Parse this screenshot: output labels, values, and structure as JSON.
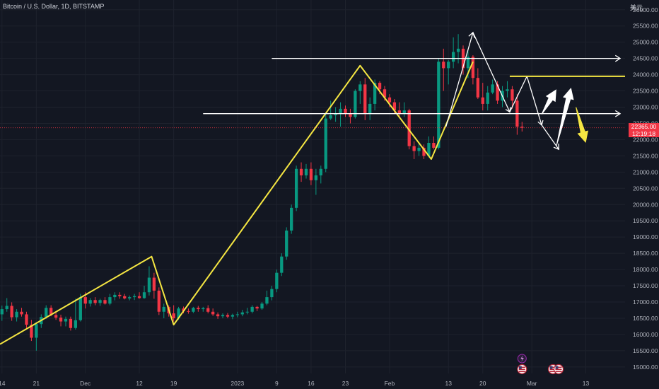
{
  "header": {
    "title": "Bitcoin / U.S. Dollar, 1D, BITSTAMP",
    "currency": "美元"
  },
  "price_tag": {
    "price": "22365.00",
    "countdown": "12:19:18"
  },
  "colors": {
    "background": "#131722",
    "grid": "#1e222d",
    "text": "#b2b5be",
    "up": "#089981",
    "down": "#f23645",
    "trendline": "#f5e642",
    "annotation": "#ffffff"
  },
  "chart_data": {
    "type": "candlestick",
    "symbol": "BTCUSD",
    "timeframe": "1D",
    "ylim": [
      14800,
      26300
    ],
    "y_ticks": [
      15000,
      15500,
      16000,
      16500,
      17000,
      17500,
      18000,
      18500,
      19000,
      19500,
      20000,
      20500,
      21000,
      21500,
      22000,
      22500,
      23000,
      23500,
      24000,
      24500,
      25000,
      25500,
      26000
    ],
    "x_tick_labels": [
      "14",
      "21",
      "Dec",
      "12",
      "19",
      "2023",
      "9",
      "16",
      "23",
      "Feb",
      "13",
      "20",
      "Mar",
      "13"
    ],
    "x_tick_days": [
      0,
      7,
      17,
      28,
      35,
      48,
      56,
      63,
      70,
      79,
      91,
      98,
      108,
      119
    ],
    "x_range_days": [
      -0.4,
      127
    ],
    "current_price": 22365,
    "candles": [
      {
        "o": 16620,
        "h": 16890,
        "l": 16420,
        "c": 16780
      },
      {
        "o": 16780,
        "h": 17120,
        "l": 16700,
        "c": 16880
      },
      {
        "o": 16880,
        "h": 16990,
        "l": 16420,
        "c": 16530
      },
      {
        "o": 16530,
        "h": 16780,
        "l": 16400,
        "c": 16700
      },
      {
        "o": 16700,
        "h": 16820,
        "l": 16550,
        "c": 16620
      },
      {
        "o": 16620,
        "h": 16700,
        "l": 16200,
        "c": 16300
      },
      {
        "o": 16300,
        "h": 16450,
        "l": 15800,
        "c": 15900
      },
      {
        "o": 15900,
        "h": 16380,
        "l": 15500,
        "c": 16320
      },
      {
        "o": 16320,
        "h": 16620,
        "l": 16200,
        "c": 16540
      },
      {
        "o": 16540,
        "h": 16900,
        "l": 16480,
        "c": 16820
      },
      {
        "o": 16820,
        "h": 16900,
        "l": 16560,
        "c": 16600
      },
      {
        "o": 16600,
        "h": 16700,
        "l": 16450,
        "c": 16520
      },
      {
        "o": 16520,
        "h": 16610,
        "l": 16250,
        "c": 16400
      },
      {
        "o": 16400,
        "h": 16550,
        "l": 16250,
        "c": 16480
      },
      {
        "o": 16480,
        "h": 16550,
        "l": 16120,
        "c": 16200
      },
      {
        "o": 16200,
        "h": 17100,
        "l": 16150,
        "c": 16440
      },
      {
        "o": 16440,
        "h": 17250,
        "l": 16400,
        "c": 17150
      },
      {
        "o": 17150,
        "h": 17300,
        "l": 16800,
        "c": 16950
      },
      {
        "o": 16950,
        "h": 17120,
        "l": 16860,
        "c": 17060
      },
      {
        "o": 17060,
        "h": 17150,
        "l": 16900,
        "c": 16970
      },
      {
        "o": 16970,
        "h": 17100,
        "l": 16880,
        "c": 17060
      },
      {
        "o": 17060,
        "h": 17150,
        "l": 16920,
        "c": 16950
      },
      {
        "o": 16950,
        "h": 17250,
        "l": 16900,
        "c": 17150
      },
      {
        "o": 17150,
        "h": 17300,
        "l": 17050,
        "c": 17220
      },
      {
        "o": 17220,
        "h": 17300,
        "l": 17100,
        "c": 17180
      },
      {
        "o": 17180,
        "h": 17250,
        "l": 17080,
        "c": 17110
      },
      {
        "o": 17110,
        "h": 17200,
        "l": 17050,
        "c": 17150
      },
      {
        "o": 17150,
        "h": 17250,
        "l": 17060,
        "c": 17180
      },
      {
        "o": 17180,
        "h": 17300,
        "l": 17100,
        "c": 17120
      },
      {
        "o": 17120,
        "h": 17500,
        "l": 17100,
        "c": 17300
      },
      {
        "o": 17300,
        "h": 18100,
        "l": 17200,
        "c": 17750
      },
      {
        "o": 17750,
        "h": 17900,
        "l": 17100,
        "c": 17350
      },
      {
        "o": 17350,
        "h": 17450,
        "l": 16600,
        "c": 16700
      },
      {
        "o": 16700,
        "h": 16950,
        "l": 16500,
        "c": 16850
      },
      {
        "o": 16850,
        "h": 16900,
        "l": 16550,
        "c": 16650
      },
      {
        "o": 16650,
        "h": 16900,
        "l": 16400,
        "c": 16500
      },
      {
        "o": 16500,
        "h": 16850,
        "l": 16450,
        "c": 16800
      },
      {
        "o": 16800,
        "h": 16860,
        "l": 16650,
        "c": 16720
      },
      {
        "o": 16720,
        "h": 16800,
        "l": 16640,
        "c": 16700
      },
      {
        "o": 16700,
        "h": 16850,
        "l": 16660,
        "c": 16820
      },
      {
        "o": 16820,
        "h": 16880,
        "l": 16700,
        "c": 16780
      },
      {
        "o": 16780,
        "h": 16850,
        "l": 16700,
        "c": 16810
      },
      {
        "o": 16810,
        "h": 16900,
        "l": 16650,
        "c": 16700
      },
      {
        "o": 16700,
        "h": 16800,
        "l": 16570,
        "c": 16620
      },
      {
        "o": 16620,
        "h": 16680,
        "l": 16480,
        "c": 16560
      },
      {
        "o": 16560,
        "h": 16650,
        "l": 16500,
        "c": 16600
      },
      {
        "o": 16600,
        "h": 16660,
        "l": 16500,
        "c": 16550
      },
      {
        "o": 16550,
        "h": 16640,
        "l": 16470,
        "c": 16600
      },
      {
        "o": 16600,
        "h": 16700,
        "l": 16530,
        "c": 16620
      },
      {
        "o": 16620,
        "h": 16760,
        "l": 16560,
        "c": 16680
      },
      {
        "o": 16680,
        "h": 16820,
        "l": 16620,
        "c": 16700
      },
      {
        "o": 16700,
        "h": 16900,
        "l": 16650,
        "c": 16850
      },
      {
        "o": 16850,
        "h": 16880,
        "l": 16720,
        "c": 16800
      },
      {
        "o": 16800,
        "h": 17000,
        "l": 16760,
        "c": 16950
      },
      {
        "o": 16950,
        "h": 17350,
        "l": 16900,
        "c": 17150
      },
      {
        "o": 17150,
        "h": 17500,
        "l": 17050,
        "c": 17400
      },
      {
        "o": 17400,
        "h": 18000,
        "l": 17300,
        "c": 17900
      },
      {
        "o": 17900,
        "h": 18500,
        "l": 17800,
        "c": 18400
      },
      {
        "o": 18400,
        "h": 19300,
        "l": 18300,
        "c": 19200
      },
      {
        "o": 19200,
        "h": 20000,
        "l": 19100,
        "c": 19900
      },
      {
        "o": 19900,
        "h": 21200,
        "l": 19800,
        "c": 21100
      },
      {
        "o": 21100,
        "h": 21300,
        "l": 20700,
        "c": 20900
      },
      {
        "o": 20900,
        "h": 21250,
        "l": 20800,
        "c": 21100
      },
      {
        "o": 21100,
        "h": 21300,
        "l": 20600,
        "c": 20750
      },
      {
        "o": 20750,
        "h": 21100,
        "l": 20300,
        "c": 20900
      },
      {
        "o": 20900,
        "h": 21200,
        "l": 20650,
        "c": 21100
      },
      {
        "o": 21100,
        "h": 22800,
        "l": 21000,
        "c": 22650
      },
      {
        "o": 22650,
        "h": 23200,
        "l": 22600,
        "c": 22750
      },
      {
        "o": 22750,
        "h": 23000,
        "l": 22550,
        "c": 22800
      },
      {
        "o": 22800,
        "h": 23150,
        "l": 22400,
        "c": 22950
      },
      {
        "o": 22950,
        "h": 23050,
        "l": 22700,
        "c": 22800
      },
      {
        "o": 22800,
        "h": 22950,
        "l": 22500,
        "c": 22700
      },
      {
        "o": 22700,
        "h": 23550,
        "l": 22650,
        "c": 23500
      },
      {
        "o": 23500,
        "h": 23800,
        "l": 23100,
        "c": 23700
      },
      {
        "o": 23700,
        "h": 23900,
        "l": 22600,
        "c": 22800
      },
      {
        "o": 22800,
        "h": 23300,
        "l": 22600,
        "c": 23100
      },
      {
        "o": 23100,
        "h": 23850,
        "l": 22900,
        "c": 23750
      },
      {
        "o": 23750,
        "h": 23800,
        "l": 23400,
        "c": 23550
      },
      {
        "o": 23550,
        "h": 23650,
        "l": 23200,
        "c": 23300
      },
      {
        "o": 23300,
        "h": 23400,
        "l": 23000,
        "c": 23150
      },
      {
        "o": 23150,
        "h": 23250,
        "l": 22800,
        "c": 22900
      },
      {
        "o": 22900,
        "h": 23150,
        "l": 22700,
        "c": 22800
      },
      {
        "o": 22800,
        "h": 23150,
        "l": 22700,
        "c": 22900
      },
      {
        "o": 22900,
        "h": 22950,
        "l": 21700,
        "c": 21800
      },
      {
        "o": 21800,
        "h": 21950,
        "l": 21400,
        "c": 21650
      },
      {
        "o": 21650,
        "h": 21900,
        "l": 21500,
        "c": 21750
      },
      {
        "o": 21750,
        "h": 21850,
        "l": 21400,
        "c": 21500
      },
      {
        "o": 21500,
        "h": 22100,
        "l": 21450,
        "c": 21900
      },
      {
        "o": 21900,
        "h": 22100,
        "l": 21700,
        "c": 21750
      },
      {
        "o": 21750,
        "h": 24500,
        "l": 21700,
        "c": 24400
      },
      {
        "o": 24400,
        "h": 24800,
        "l": 23500,
        "c": 24200
      },
      {
        "o": 24200,
        "h": 24450,
        "l": 23700,
        "c": 24400
      },
      {
        "o": 24400,
        "h": 25150,
        "l": 24200,
        "c": 24700
      },
      {
        "o": 24700,
        "h": 25250,
        "l": 24350,
        "c": 24800
      },
      {
        "o": 24800,
        "h": 24900,
        "l": 24000,
        "c": 24200
      },
      {
        "o": 24200,
        "h": 24750,
        "l": 23900,
        "c": 24550
      },
      {
        "o": 24550,
        "h": 24600,
        "l": 23700,
        "c": 23900
      },
      {
        "o": 23900,
        "h": 24200,
        "l": 23250,
        "c": 23300
      },
      {
        "o": 23300,
        "h": 23750,
        "l": 22900,
        "c": 23100
      },
      {
        "o": 23100,
        "h": 23650,
        "l": 22900,
        "c": 23450
      },
      {
        "o": 23450,
        "h": 23850,
        "l": 23400,
        "c": 23700
      },
      {
        "o": 23700,
        "h": 23800,
        "l": 23100,
        "c": 23200
      },
      {
        "o": 23200,
        "h": 23650,
        "l": 23000,
        "c": 23500
      },
      {
        "o": 23500,
        "h": 23800,
        "l": 23300,
        "c": 23550
      },
      {
        "o": 23550,
        "h": 23650,
        "l": 22950,
        "c": 23200
      },
      {
        "o": 23200,
        "h": 23400,
        "l": 22150,
        "c": 22400
      },
      {
        "o": 22400,
        "h": 22550,
        "l": 22250,
        "c": 22365
      }
    ],
    "annotations": {
      "yellow_zigzag": [
        {
          "d": -0.4,
          "v": 15700
        },
        {
          "d": 30.5,
          "v": 18400
        },
        {
          "d": 35,
          "v": 16300
        },
        {
          "d": 73,
          "v": 24280
        },
        {
          "d": 87.5,
          "v": 21400
        },
        {
          "d": 96,
          "v": 24400
        }
      ],
      "white_zigzag": [
        {
          "d": 90.5,
          "v": 22400
        },
        {
          "d": 96,
          "v": 25300
        },
        {
          "d": 103.5,
          "v": 22850
        },
        {
          "d": 107,
          "v": 23950
        },
        {
          "d": 110,
          "v": 22450
        },
        {
          "d": 113.5,
          "v": 21700
        }
      ],
      "white_rays": [
        {
          "x1": 55,
          "x2": 126,
          "v": 24500
        },
        {
          "x1": 41,
          "x2": 126,
          "v": 22800
        }
      ],
      "yellow_level": {
        "x1": 103.5,
        "x2": 127,
        "v": 23950
      },
      "arrows": [
        {
          "color": "white",
          "from": {
            "d": 110,
            "v": 22780
          },
          "to": {
            "d": 113,
            "v": 23550
          }
        },
        {
          "color": "white",
          "from": {
            "d": 113,
            "v": 21800
          },
          "to": {
            "d": 116,
            "v": 23600
          }
        },
        {
          "color": "yellow",
          "from": {
            "d": 117,
            "v": 23000
          },
          "to": {
            "d": 119,
            "v": 21900
          }
        }
      ]
    }
  }
}
